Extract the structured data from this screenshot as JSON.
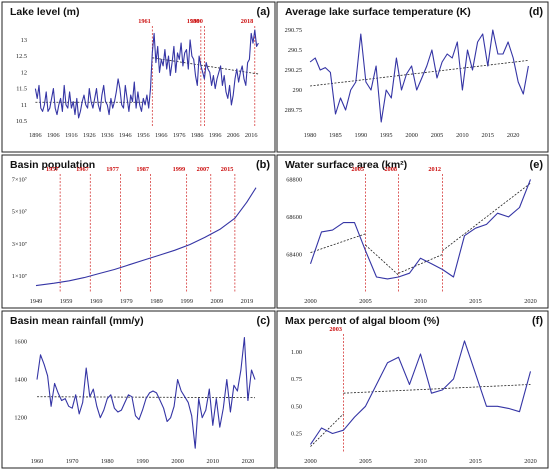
{
  "chart_data": [
    {
      "id": "a",
      "type": "line",
      "letter": "(a)",
      "title": "Lake level (m)",
      "x": [
        1896,
        1897,
        1898,
        1899,
        1900,
        1901,
        1902,
        1903,
        1904,
        1905,
        1906,
        1907,
        1908,
        1909,
        1910,
        1911,
        1912,
        1913,
        1914,
        1915,
        1916,
        1917,
        1918,
        1919,
        1920,
        1921,
        1922,
        1923,
        1924,
        1925,
        1926,
        1927,
        1928,
        1929,
        1930,
        1931,
        1932,
        1933,
        1934,
        1935,
        1936,
        1937,
        1938,
        1939,
        1940,
        1941,
        1942,
        1943,
        1944,
        1945,
        1946,
        1947,
        1948,
        1949,
        1950,
        1951,
        1952,
        1953,
        1954,
        1955,
        1956,
        1957,
        1958,
        1959,
        1960,
        1961,
        1962,
        1963,
        1964,
        1965,
        1966,
        1967,
        1968,
        1969,
        1970,
        1971,
        1972,
        1973,
        1974,
        1975,
        1976,
        1977,
        1978,
        1979,
        1980,
        1981,
        1982,
        1983,
        1984,
        1985,
        1986,
        1987,
        1988,
        1989,
        1990,
        1991,
        1992,
        1993,
        1994,
        1995,
        1996,
        1997,
        1998,
        1999,
        2000,
        2001,
        2002,
        2003,
        2004,
        2005,
        2006,
        2007,
        2008,
        2009,
        2010,
        2011,
        2012,
        2013,
        2014,
        2015,
        2016,
        2017,
        2018,
        2019,
        2020
      ],
      "values": [
        11.5,
        11.2,
        11.6,
        10.9,
        10.8,
        11.0,
        11.4,
        10.8,
        10.9,
        11.2,
        11.5,
        10.9,
        10.7,
        11.0,
        11.2,
        10.8,
        11.6,
        11.0,
        10.9,
        11.4,
        10.9,
        11.1,
        10.7,
        11.2,
        10.6,
        10.8,
        11.1,
        11.3,
        11.0,
        10.9,
        11.5,
        11.1,
        10.9,
        11.2,
        11.5,
        11.0,
        10.8,
        11.3,
        11.6,
        11.1,
        11.0,
        10.7,
        11.2,
        10.9,
        11.1,
        11.4,
        11.8,
        11.5,
        11.0,
        10.9,
        11.6,
        11.2,
        10.8,
        11.3,
        11.1,
        11.7,
        10.9,
        11.4,
        11.0,
        10.8,
        11.2,
        11.0,
        11.3,
        10.9,
        11.5,
        12.6,
        13.2,
        12.3,
        12.8,
        12.0,
        12.4,
        12.2,
        12.7,
        12.1,
        12.5,
        11.9,
        12.3,
        12.8,
        12.0,
        12.6,
        12.4,
        12.9,
        12.2,
        12.6,
        12.7,
        12.1,
        13.0,
        12.5,
        12.4,
        11.9,
        11.6,
        12.5,
        12.2,
        12.0,
        11.8,
        12.3,
        12.1,
        12.0,
        11.6,
        11.9,
        11.5,
        11.8,
        12.0,
        12.2,
        11.6,
        11.9,
        11.4,
        11.2,
        11.6,
        11.0,
        11.3,
        11.8,
        12.1,
        11.7,
        12.0,
        12.2,
        11.8,
        11.6,
        12.3,
        12.4,
        13.2,
        12.9,
        13.3,
        12.8,
        12.9
      ],
      "trend": [
        {
          "x": [
            1896,
            1960
          ],
          "y": [
            11.08,
            11.08
          ]
        },
        {
          "x": [
            1961,
            2020
          ],
          "y": [
            12.45,
            11.95
          ]
        }
      ],
      "xticks": [
        1896,
        1906,
        1916,
        1926,
        1936,
        1946,
        1956,
        1966,
        1976,
        1986,
        1996,
        2006,
        2016
      ],
      "yticks": [
        10.5,
        11.0,
        11.5,
        12.0,
        12.5,
        13.0
      ],
      "xlim": [
        1893,
        2022
      ],
      "ylim": [
        10.35,
        13.55
      ],
      "annotations": [
        {
          "x": 1961,
          "label": "1961"
        },
        {
          "x": 1988,
          "label": "1988"
        },
        {
          "x": 1990,
          "label": "1990"
        },
        {
          "x": 2018,
          "label": "2018"
        }
      ]
    },
    {
      "id": "d",
      "type": "line",
      "letter": "(d)",
      "title": "Average lake surface temperature (K)",
      "x": [
        1980,
        1981,
        1982,
        1983,
        1984,
        1985,
        1986,
        1987,
        1988,
        1989,
        1990,
        1991,
        1992,
        1993,
        1994,
        1995,
        1996,
        1997,
        1998,
        1999,
        2000,
        2001,
        2002,
        2003,
        2004,
        2005,
        2006,
        2007,
        2008,
        2009,
        2010,
        2011,
        2012,
        2013,
        2014,
        2015,
        2016,
        2017,
        2018,
        2019,
        2020,
        2021,
        2022,
        2023
      ],
      "values": [
        290.35,
        290.4,
        290.25,
        290.28,
        290.22,
        289.7,
        289.9,
        289.75,
        290.0,
        290.1,
        290.7,
        290.1,
        290.0,
        290.3,
        289.6,
        290.0,
        289.9,
        290.4,
        290.0,
        290.2,
        290.3,
        290.0,
        290.15,
        290.3,
        290.5,
        290.15,
        290.35,
        290.45,
        290.4,
        290.6,
        290.0,
        290.5,
        290.25,
        290.6,
        290.7,
        290.3,
        290.75,
        290.45,
        290.45,
        290.6,
        290.4,
        290.1,
        289.95,
        290.3
      ],
      "trend": [
        {
          "x": [
            1980,
            2023
          ],
          "y": [
            290.05,
            290.37
          ]
        }
      ],
      "xticks": [
        1980,
        1985,
        1990,
        1995,
        2000,
        2005,
        2010,
        2015,
        2020
      ],
      "yticks": [
        289.75,
        290.0,
        290.25,
        290.5,
        290.75
      ],
      "xlim": [
        1979,
        2024.5
      ],
      "ylim": [
        289.55,
        290.85
      ],
      "annotations": []
    },
    {
      "id": "b",
      "type": "line",
      "letter": "(b)",
      "title": "Basin population",
      "x": [
        1949,
        1955,
        1960,
        1965,
        1970,
        1975,
        1980,
        1985,
        1990,
        1995,
        2000,
        2005,
        2010,
        2015,
        2019,
        2022
      ],
      "values": [
        0.4,
        0.55,
        0.7,
        0.9,
        1.15,
        1.4,
        1.7,
        2.0,
        2.3,
        2.6,
        2.95,
        3.4,
        3.9,
        4.6,
        5.6,
        6.5
      ],
      "trend": [],
      "xticks": [
        1949,
        1959,
        1969,
        1979,
        1989,
        1999,
        2009,
        2019
      ],
      "yticks": [
        1,
        3,
        5,
        7
      ],
      "ytick_labels": [
        "1×10⁷",
        "3×10⁷",
        "5×10⁷",
        "7×10⁷"
      ],
      "xlim": [
        1947,
        2024
      ],
      "ylim": [
        0,
        7.6
      ],
      "annotations": [
        {
          "x": 1957,
          "label": "1957"
        },
        {
          "x": 1967,
          "label": "1967"
        },
        {
          "x": 1977,
          "label": "1977"
        },
        {
          "x": 1987,
          "label": "1987"
        },
        {
          "x": 1999,
          "label": "1999"
        },
        {
          "x": 2007,
          "label": "2007"
        },
        {
          "x": 2015,
          "label": "2015"
        }
      ]
    },
    {
      "id": "e",
      "type": "line",
      "letter": "(e)",
      "title": "Water surface area (km²)",
      "x": [
        2000,
        2001,
        2002,
        2003,
        2004,
        2005,
        2006,
        2007,
        2008,
        2009,
        2010,
        2011,
        2012,
        2013,
        2014,
        2015,
        2016,
        2017,
        2018,
        2019,
        2020
      ],
      "values": [
        68350,
        68520,
        68530,
        68570,
        68570,
        68420,
        68280,
        68270,
        68280,
        68300,
        68380,
        68350,
        68320,
        68280,
        68500,
        68540,
        68560,
        68620,
        68600,
        68650,
        68800
      ],
      "trend": [
        {
          "x": [
            2000,
            2005
          ],
          "y": [
            68410,
            68510
          ]
        },
        {
          "x": [
            2005,
            2008
          ],
          "y": [
            68450,
            68290
          ]
        },
        {
          "x": [
            2008,
            2012
          ],
          "y": [
            68300,
            68400
          ]
        },
        {
          "x": [
            2012,
            2020
          ],
          "y": [
            68420,
            68780
          ]
        }
      ],
      "xticks": [
        2000,
        2005,
        2010,
        2015,
        2020
      ],
      "yticks": [
        68400,
        68600,
        68800
      ],
      "xlim": [
        1999.5,
        2020.5
      ],
      "ylim": [
        68200,
        68850
      ],
      "annotations": [
        {
          "x": 2005,
          "label": "2005"
        },
        {
          "x": 2008,
          "label": "2008"
        },
        {
          "x": 2012,
          "label": "2012"
        }
      ]
    },
    {
      "id": "c",
      "type": "line",
      "letter": "(c)",
      "title": "Basin mean rainfall (mm/y)",
      "x": [
        1960,
        1961,
        1962,
        1963,
        1964,
        1965,
        1966,
        1967,
        1968,
        1969,
        1970,
        1971,
        1972,
        1973,
        1974,
        1975,
        1976,
        1977,
        1978,
        1979,
        1980,
        1981,
        1982,
        1983,
        1984,
        1985,
        1986,
        1987,
        1988,
        1989,
        1990,
        1991,
        1992,
        1993,
        1994,
        1995,
        1996,
        1997,
        1998,
        1999,
        2000,
        2001,
        2002,
        2003,
        2004,
        2005,
        2006,
        2007,
        2008,
        2009,
        2010,
        2011,
        2012,
        2013,
        2014,
        2015,
        2016,
        2017,
        2018,
        2019,
        2020,
        2021,
        2022
      ],
      "values": [
        1400,
        1530,
        1480,
        1420,
        1260,
        1380,
        1330,
        1290,
        1300,
        1260,
        1250,
        1320,
        1220,
        1280,
        1460,
        1310,
        1350,
        1260,
        1200,
        1240,
        1300,
        1320,
        1250,
        1230,
        1240,
        1280,
        1320,
        1310,
        1210,
        1190,
        1240,
        1300,
        1330,
        1340,
        1330,
        1290,
        1250,
        1180,
        1200,
        1260,
        1400,
        1340,
        1310,
        1280,
        1210,
        1040,
        1300,
        1200,
        1240,
        1350,
        1160,
        1300,
        1150,
        1250,
        1400,
        1230,
        1370,
        1340,
        1450,
        1620,
        1290,
        1450,
        1400
      ],
      "trend": [
        {
          "x": [
            1960,
            2022
          ],
          "y": [
            1310,
            1305
          ]
        }
      ],
      "xticks": [
        1960,
        1970,
        1980,
        1990,
        2000,
        2010,
        2020
      ],
      "yticks": [
        1200,
        1400,
        1600
      ],
      "xlim": [
        1958,
        2024
      ],
      "ylim": [
        1020,
        1660
      ],
      "annotations": []
    },
    {
      "id": "f",
      "type": "line",
      "letter": "(f)",
      "title": "Max percent of algal bloom (%)",
      "x": [
        2000,
        2001,
        2002,
        2003,
        2004,
        2005,
        2006,
        2007,
        2008,
        2009,
        2010,
        2011,
        2012,
        2013,
        2014,
        2015,
        2016,
        2017,
        2018,
        2019,
        2020
      ],
      "values": [
        0.15,
        0.3,
        0.25,
        0.28,
        0.4,
        0.5,
        0.7,
        0.9,
        0.95,
        0.7,
        0.98,
        0.62,
        0.65,
        0.75,
        1.1,
        0.8,
        0.5,
        0.5,
        0.48,
        0.45,
        0.82
      ],
      "trend": [
        {
          "x": [
            2000,
            2003
          ],
          "y": [
            0.13,
            0.43
          ]
        },
        {
          "x": [
            2003,
            2020
          ],
          "y": [
            0.62,
            0.7
          ]
        }
      ],
      "xticks": [
        2000,
        2005,
        2010,
        2015,
        2020
      ],
      "yticks": [
        0.25,
        0.5,
        0.75,
        1.0
      ],
      "ytick_labels": [
        "0.25",
        "0.50",
        "0.75",
        "1.00"
      ],
      "xlim": [
        1999.5,
        2020.5
      ],
      "ylim": [
        0.08,
        1.2
      ],
      "annotations": [
        {
          "x": 2003,
          "label": "2003"
        }
      ]
    }
  ]
}
